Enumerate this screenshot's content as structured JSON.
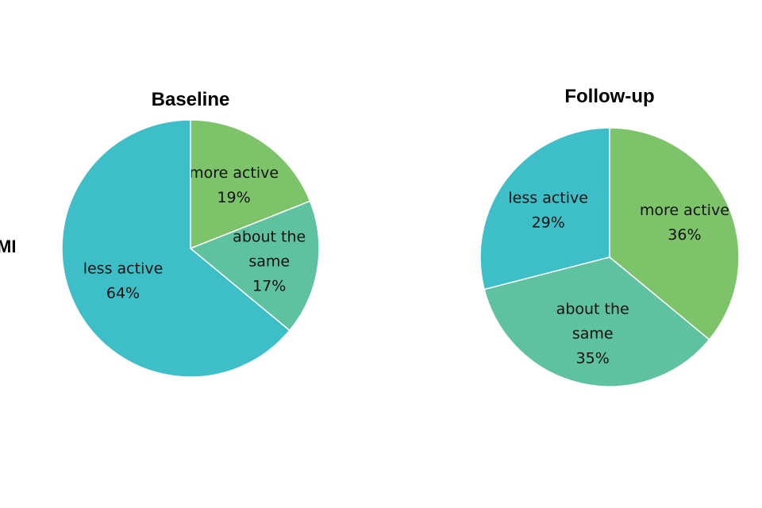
{
  "side_label": "MI",
  "chart_data": [
    {
      "type": "pie",
      "title": "Baseline",
      "categories": [
        "more active",
        "about the same",
        "less active"
      ],
      "values": [
        19,
        17,
        64
      ],
      "value_labels": [
        "19%",
        "17%",
        "64%"
      ],
      "label_lines": [
        [
          "more active",
          "19%"
        ],
        [
          "about the",
          "same",
          "17%"
        ],
        [
          "less active",
          "64%"
        ]
      ],
      "colors": [
        "#7dc36a",
        "#5ec1a0",
        "#3ebfc7"
      ],
      "start_angle_deg": 0,
      "direction": "clockwise",
      "legend": "none"
    },
    {
      "type": "pie",
      "title": "Follow-up",
      "categories": [
        "more active",
        "about the same",
        "less active"
      ],
      "values": [
        36,
        35,
        29
      ],
      "value_labels": [
        "36%",
        "35%",
        "29%"
      ],
      "label_lines": [
        [
          "more active",
          "36%"
        ],
        [
          "about the",
          "same",
          "35%"
        ],
        [
          "less active",
          "29%"
        ]
      ],
      "colors": [
        "#7dc36a",
        "#5ec1a0",
        "#3ebfc7"
      ],
      "start_angle_deg": 0,
      "direction": "clockwise",
      "legend": "none"
    }
  ]
}
